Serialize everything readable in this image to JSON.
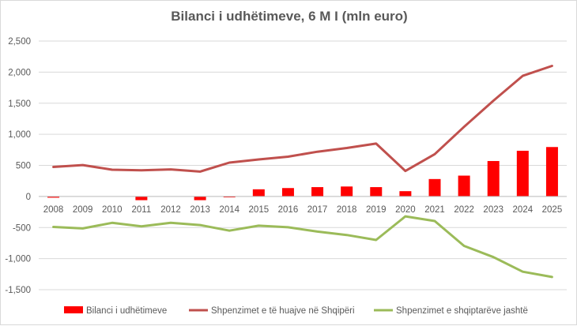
{
  "chart_data": {
    "type": "bar",
    "title": "Bilanci i udhëtimeve, 6 M I (mln euro)",
    "xlabel": "",
    "ylabel": "",
    "ylim": [
      -1500,
      2500
    ],
    "yticks": [
      2500,
      2000,
      1500,
      1000,
      500,
      0,
      -500,
      -1000,
      -1500
    ],
    "ytick_labels": [
      "2,500",
      "2,000",
      "1,500",
      "1,000",
      "500",
      "0",
      "-500",
      "-1,000",
      "-1,500"
    ],
    "grid": true,
    "legend_position": "bottom",
    "categories": [
      "2008",
      "2009",
      "2010",
      "2011",
      "2012",
      "2013",
      "2014",
      "2015",
      "2016",
      "2017",
      "2018",
      "2019",
      "2020",
      "2021",
      "2022",
      "2023",
      "2024",
      "2025"
    ],
    "series": [
      {
        "name": "Bilanci i udhëtimeve",
        "kind": "bar",
        "color": "#ff0000",
        "values": [
          -20,
          0,
          0,
          -60,
          0,
          -60,
          -15,
          115,
          135,
          150,
          160,
          150,
          85,
          280,
          335,
          570,
          735,
          795
        ]
      },
      {
        "name": "Shpenzimet e të huajve në Shqipëri",
        "kind": "line",
        "color": "#c0504d",
        "values": [
          475,
          505,
          430,
          420,
          435,
          400,
          545,
          595,
          640,
          720,
          780,
          850,
          410,
          680,
          1120,
          1540,
          1940,
          2100
        ]
      },
      {
        "name": "Shpenzimet e shqiptarëve jashtë",
        "kind": "line",
        "color": "#9bbb59",
        "values": [
          -490,
          -515,
          -425,
          -480,
          -425,
          -460,
          -550,
          -470,
          -495,
          -565,
          -620,
          -700,
          -320,
          -395,
          -795,
          -975,
          -1210,
          -1295
        ]
      }
    ]
  }
}
